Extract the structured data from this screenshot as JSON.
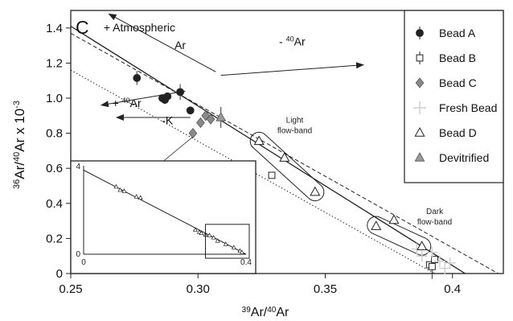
{
  "chart_data": {
    "type": "scatter",
    "panel_label": "C",
    "xlabel": "³⁹Ar/⁴⁰Ar",
    "ylabel": "³⁶Ar/⁴⁰Ar x 10⁻³",
    "xlim": [
      0.25,
      0.42
    ],
    "ylim": [
      0,
      1.5
    ],
    "xticks": [
      {
        "value": 0.25,
        "label": "0.25"
      },
      {
        "value": 0.3,
        "label": "0.30"
      },
      {
        "value": 0.35,
        "label": "0.35"
      },
      {
        "value": 0.4,
        "label": "0.4"
      }
    ],
    "yticks": [
      {
        "value": 0,
        "label": "0"
      },
      {
        "value": 0.2,
        "label": "0.2"
      },
      {
        "value": 0.4,
        "label": "0.4"
      },
      {
        "value": 0.6,
        "label": "0.6"
      },
      {
        "value": 0.8,
        "label": "0.8"
      },
      {
        "value": 1.0,
        "label": "1.0"
      },
      {
        "value": 1.2,
        "label": "1.2"
      },
      {
        "value": 1.4,
        "label": "1.4"
      }
    ],
    "series": [
      {
        "name": "Bead A",
        "marker": "filled-circle",
        "color": "#222222",
        "points": [
          [
            0.276,
            1.115
          ],
          [
            0.286,
            1.0
          ],
          [
            0.287,
            0.99
          ],
          [
            0.288,
            1.01
          ],
          [
            0.293,
            1.035
          ],
          [
            0.297,
            0.93
          ]
        ]
      },
      {
        "name": "Bead B",
        "marker": "open-square",
        "color": "#222222",
        "points": [
          [
            0.329,
            0.56
          ],
          [
            0.391,
            0.05
          ],
          [
            0.393,
            0.08
          ],
          [
            0.392,
            0.04
          ]
        ]
      },
      {
        "name": "Bead C",
        "marker": "filled-diamond",
        "color": "#8a8a8a",
        "points": [
          [
            0.298,
            0.8
          ],
          [
            0.301,
            0.86
          ],
          [
            0.303,
            0.9
          ],
          [
            0.305,
            0.88
          ]
        ]
      },
      {
        "name": "Fresh Bead",
        "marker": "plus",
        "color": "#cfcfcf",
        "points": [
          [
            0.388,
            0.1
          ],
          [
            0.392,
            0.12
          ],
          [
            0.395,
            0.07
          ],
          [
            0.397,
            0.03
          ],
          [
            0.399,
            0.06
          ],
          [
            0.386,
            0.14
          ]
        ]
      },
      {
        "name": "Bead D",
        "marker": "open-triangle",
        "color": "#222222",
        "points": [
          [
            0.324,
            0.755
          ],
          [
            0.334,
            0.66
          ],
          [
            0.346,
            0.465
          ],
          [
            0.37,
            0.27
          ],
          [
            0.377,
            0.305
          ],
          [
            0.388,
            0.155
          ]
        ]
      },
      {
        "name": "Devitrified",
        "marker": "filled-triangle",
        "color": "#9a9a9a",
        "points": [
          [
            0.309,
            0.89
          ]
        ]
      }
    ],
    "reference_lines": [
      {
        "style": "solid",
        "from": [
          0.25,
          1.41
        ],
        "to": [
          0.405,
          0.0
        ]
      },
      {
        "style": "dashed",
        "from": [
          0.25,
          1.37
        ],
        "to": [
          0.418,
          0.0
        ]
      },
      {
        "style": "dotted",
        "from": [
          0.25,
          1.16
        ],
        "to": [
          0.393,
          0.0
        ]
      }
    ],
    "annotations": [
      {
        "text": "+ Atmospheric",
        "at": [
          0.277,
          1.38
        ]
      },
      {
        "text": "Ar",
        "at": [
          0.293,
          1.28
        ]
      },
      {
        "text": "- ⁴⁰Ar",
        "at": [
          0.337,
          1.3
        ]
      },
      {
        "text": "+ ⁴⁰Ar",
        "at": [
          0.272,
          0.95
        ]
      },
      {
        "text": "-K",
        "at": [
          0.288,
          0.85
        ]
      },
      {
        "text": "Light",
        "at": [
          0.338,
          0.86
        ]
      },
      {
        "text": "flow-band",
        "at": [
          0.338,
          0.8
        ]
      },
      {
        "text": "Dark",
        "at": [
          0.393,
          0.34
        ]
      },
      {
        "text": "flow-band",
        "at": [
          0.393,
          0.28
        ]
      }
    ],
    "arrows": [
      {
        "from": [
          0.307,
          1.15
        ],
        "to": [
          0.265,
          1.48
        ]
      },
      {
        "from": [
          0.309,
          1.13
        ],
        "to": [
          0.365,
          1.19
        ]
      },
      {
        "from": [
          0.295,
          1.04
        ],
        "to": [
          0.262,
          0.96
        ]
      },
      {
        "from": [
          0.297,
          0.89
        ],
        "to": [
          0.268,
          0.89
        ]
      }
    ],
    "inset": {
      "xlim": [
        0,
        0.4
      ],
      "ylim": [
        0,
        4
      ],
      "xtick_labels": [
        "0",
        "0.4"
      ],
      "ytick_labels": [
        "0",
        "4"
      ],
      "line": {
        "from": [
          0,
          3.8
        ],
        "to": [
          0.4,
          0.0
        ]
      },
      "points": [
        [
          0.08,
          3.05
        ],
        [
          0.09,
          2.9
        ],
        [
          0.1,
          2.85
        ],
        [
          0.13,
          2.6
        ],
        [
          0.14,
          2.55
        ],
        [
          0.275,
          1.1
        ],
        [
          0.285,
          1.0
        ],
        [
          0.29,
          0.95
        ],
        [
          0.3,
          0.88
        ],
        [
          0.31,
          0.85
        ],
        [
          0.32,
          0.75
        ],
        [
          0.33,
          0.6
        ],
        [
          0.35,
          0.45
        ],
        [
          0.37,
          0.3
        ],
        [
          0.385,
          0.15
        ],
        [
          0.39,
          0.08
        ]
      ],
      "zoom_box": {
        "x": [
          0.25,
          0.4
        ],
        "y": [
          0,
          1.5
        ]
      }
    },
    "legend": {
      "position": "top-right"
    },
    "grid": false
  }
}
